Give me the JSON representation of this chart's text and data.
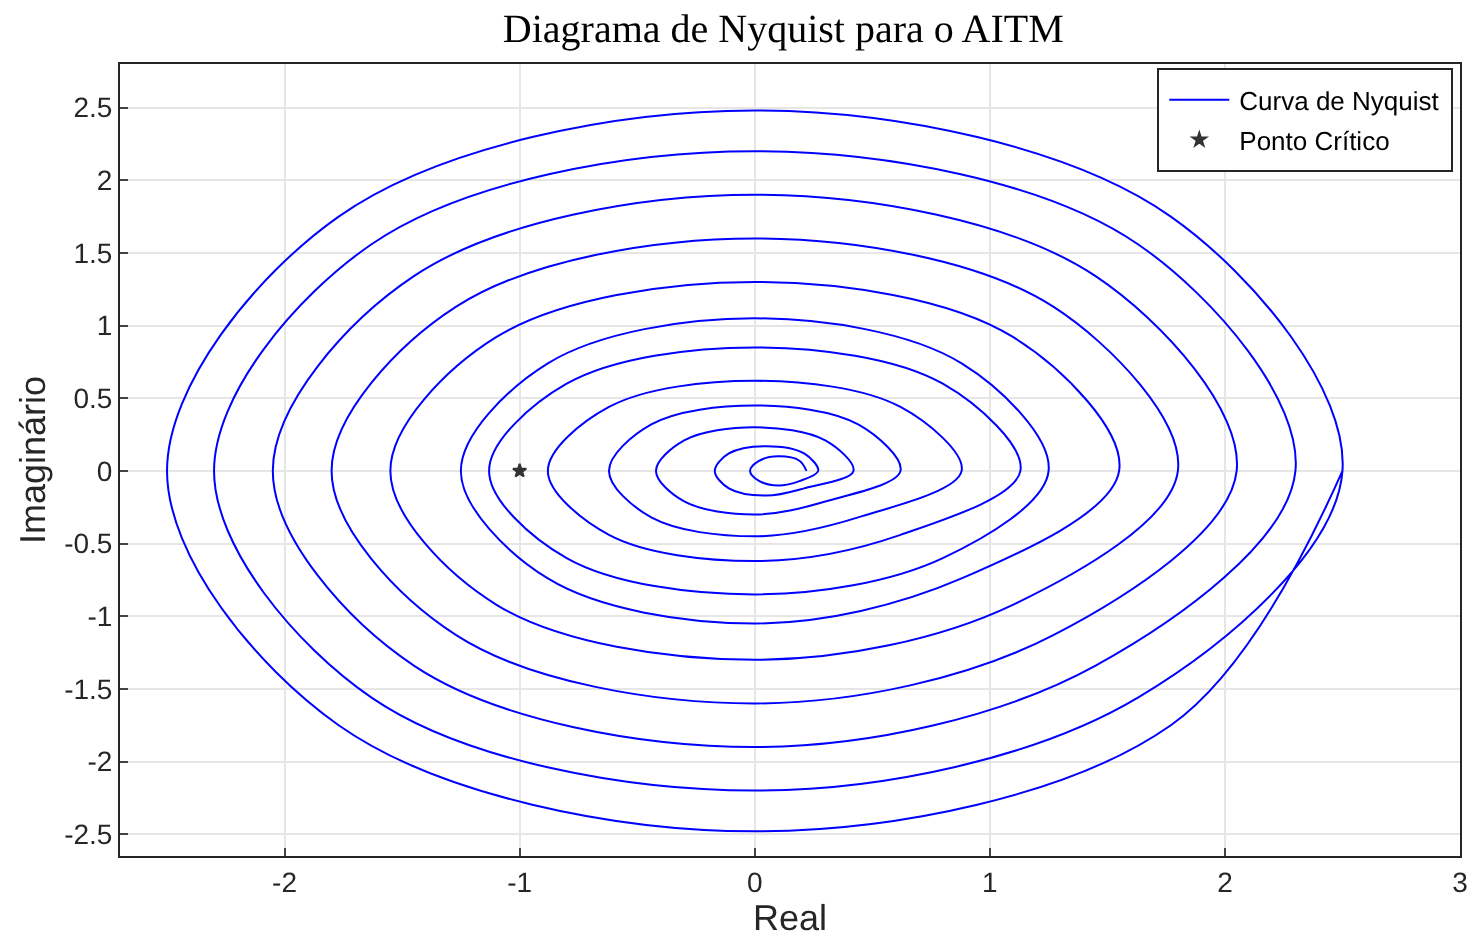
{
  "chart_data": {
    "type": "line",
    "title": "Diagrama de Nyquist para o AITM",
    "xlabel": "Real",
    "ylabel": "Imaginário",
    "xlim": [
      -2.7,
      3
    ],
    "xticks": [
      -2,
      -1,
      0,
      1,
      2,
      3
    ],
    "ylim": [
      -2.65,
      2.8
    ],
    "yticks": [
      -2.5,
      -2,
      -1.5,
      -1,
      -0.5,
      0,
      0.5,
      1,
      1.5,
      2,
      2.5
    ],
    "grid": true,
    "legend": "top right",
    "series": [
      {
        "name": "Curva de Nyquist",
        "color": "#0000ff",
        "marker": "none",
        "line_style": "solid",
        "x": [
          0.22,
          0.19,
          0.1,
          0.02,
          -0.02,
          0.02,
          0.1,
          0.19,
          0.27,
          0.21,
          0.05,
          -0.11,
          -0.17,
          -0.11,
          0.05,
          0.21,
          0.42,
          0.3,
          0,
          -0.3,
          -0.42,
          -0.3,
          0,
          0.3,
          0.62,
          0.44,
          0,
          -0.44,
          -0.62,
          -0.44,
          0,
          0.44,
          0.88,
          0.62,
          0,
          -0.62,
          -0.88,
          -0.62,
          0,
          0.62,
          1.13,
          0.8,
          0,
          -0.8,
          -1.13,
          -0.8,
          0,
          0.8,
          1.25,
          0.88,
          0,
          -0.88,
          -1.25,
          -0.88,
          0,
          0.88,
          1.55,
          1.1,
          0,
          -1.1,
          -1.55,
          -1.1,
          0,
          1.1,
          1.8,
          1.27,
          0,
          -1.27,
          -1.8,
          -1.27,
          0,
          1.27,
          2.05,
          1.45,
          0,
          -1.45,
          -2.05,
          -1.45,
          0,
          1.45,
          2.3,
          1.63,
          0,
          -1.63,
          -2.3,
          -1.63,
          0,
          1.63,
          2.5,
          1.77,
          0,
          -1.77,
          -2.5,
          -1.77,
          0,
          1.77,
          2.5
        ],
        "values": [
          0,
          0.07,
          0.1,
          0.07,
          0,
          -0.07,
          -0.1,
          -0.07,
          0,
          0.12,
          0.17,
          0.12,
          0,
          -0.12,
          -0.17,
          -0.12,
          0,
          0.21,
          0.3,
          0.21,
          0,
          -0.21,
          -0.3,
          -0.21,
          0,
          0.32,
          0.45,
          0.32,
          0,
          -0.32,
          -0.45,
          -0.32,
          0,
          0.44,
          0.62,
          0.44,
          0,
          -0.44,
          -0.62,
          -0.44,
          0,
          0.6,
          0.85,
          0.6,
          0,
          -0.6,
          -0.85,
          -0.6,
          0,
          0.74,
          1.05,
          0.74,
          0,
          -0.74,
          -1.05,
          -0.74,
          0,
          0.92,
          1.3,
          0.92,
          0,
          -0.92,
          -1.3,
          -0.92,
          0,
          1.13,
          1.6,
          1.13,
          0,
          -1.13,
          -1.6,
          -1.13,
          0,
          1.34,
          1.9,
          1.34,
          0,
          -1.34,
          -1.9,
          -1.34,
          0,
          1.56,
          2.2,
          1.56,
          0,
          -1.56,
          -2.2,
          -1.56,
          0,
          1.75,
          2.48,
          1.75,
          0,
          -1.75,
          -2.48,
          -1.75,
          0
        ]
      },
      {
        "name": "Ponto Crítico",
        "type": "scatter",
        "color": "#333333",
        "marker": "star",
        "x": [
          -1
        ],
        "values": [
          0
        ]
      }
    ]
  }
}
